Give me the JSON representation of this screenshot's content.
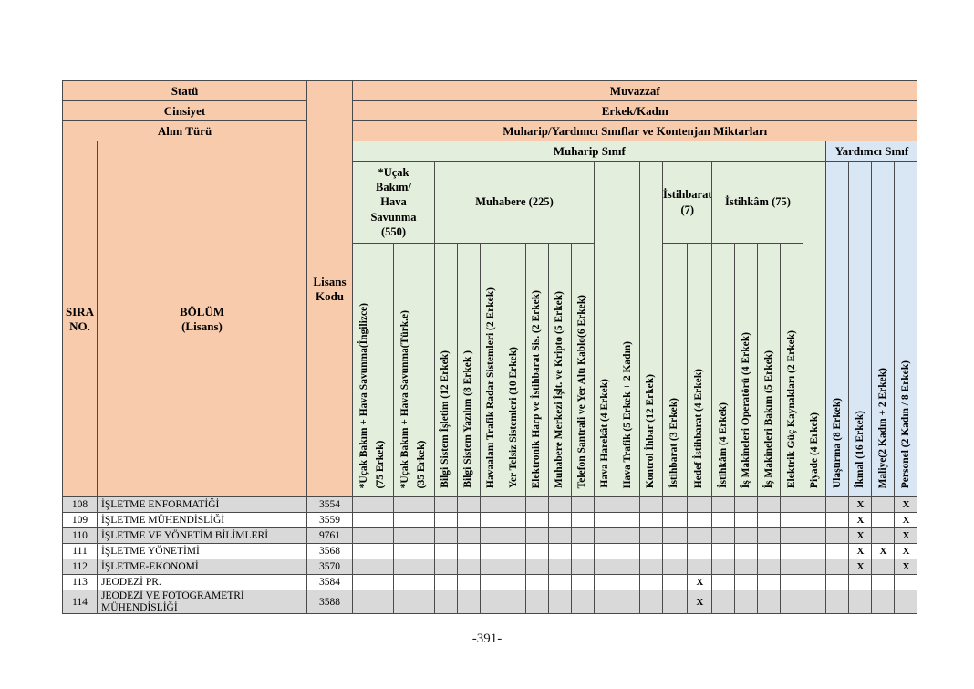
{
  "page": {
    "footer": "-391-"
  },
  "colors": {
    "header_orange": "#f8cbad",
    "muharip_green": "#e4eedc",
    "yardimci_blue": "#d9e7f5",
    "row_shade_grey": "#d9d9d9",
    "border": "#4a4a4a"
  },
  "table": {
    "left": {
      "statu": "Statü",
      "cinsiyet": "Cinsiyet",
      "alim_turu": "Alım Türü",
      "sira_no": "SIRA\nNO.",
      "bolum": "BÖLÜM\n(Lisans)",
      "lisans_kodu": "Lisans\nKodu"
    },
    "right": {
      "muvazzaf": "Muvazzaf",
      "erkek_kadin": "Erkek/Kadın",
      "kontenjan": "Muharip/Yardımcı Sınıflar ve Kontenjan Miktarları",
      "muharip": "Muharip Sınıf",
      "yardimci": "Yardımcı Sınıf"
    },
    "groups": [
      {
        "label": "*Uçak\nBakım/\nHava\nSavunma\n(550)",
        "span": 2
      },
      {
        "label": "Muhabere (225)",
        "span": 7
      },
      {
        "label": "İstihbarat\n(7)",
        "span": 2
      },
      {
        "label": "İstihkâm (75)",
        "span": 4
      }
    ],
    "columns": [
      {
        "label": "*Uçak Bakım + Hava Savunma(İngilizce)\n(75 Erkek)",
        "group": 0,
        "wide": true
      },
      {
        "label": "*Uçak Bakım + Hava Savunma(Türk.e)\n(35 Erkek)",
        "group": 0,
        "wide": true
      },
      {
        "label": "Bilgi Sistem İşletim (12 Erkek)",
        "group": 1
      },
      {
        "label": "Bilgi Sistem Yazılım (8 Erkek )",
        "group": 1
      },
      {
        "label": "Havaalanı Trafik Radar Sistemleri (2 Erkek)",
        "group": 1
      },
      {
        "label": "Yer Telsiz Sistemleri (10 Erkek)",
        "group": 1
      },
      {
        "label": "Elektronik Harp ve İstihbarat Sis. (2 Erkek)",
        "group": 1
      },
      {
        "label": "Muhabere Merkezi İşlt. ve Kripto (5 Erkek)",
        "group": 1
      },
      {
        "label": "Telefon Santrali ve Yer Altı Kablo(6 Erkek)",
        "group": 1
      },
      {
        "label": "Hava Harekât (4 Erkek)",
        "tall": true
      },
      {
        "label": "Hava Trafik (5 Erkek + 2 Kadın)",
        "tall": true
      },
      {
        "label": "Kontrol İhbar (12 Erkek)",
        "tall": true
      },
      {
        "label": "İstihbarat (3 Erkek)",
        "group": 2
      },
      {
        "label": "Hedef İstihbarat (4 Erkek)",
        "group": 2
      },
      {
        "label": "İstihkâm (4 Erkek)",
        "group": 3
      },
      {
        "label": "İş Makineleri Operatörü (4 Erkek)",
        "group": 3
      },
      {
        "label": "İş Makineleri Bakım (5 Erkek)",
        "group": 3
      },
      {
        "label": "Elektrik Güç Kaynakları (2 Erkek)",
        "group": 3
      },
      {
        "label": "Piyade (4 Erkek)",
        "tall": true
      },
      {
        "label": "Ulaştırma (8 Erkek)",
        "tall": true,
        "section": "yardimci"
      },
      {
        "label": "İkmal (16 Erkek)",
        "tall": true,
        "section": "yardimci"
      },
      {
        "label": "Maliye(2 Kadın + 2 Erkek)",
        "tall": true,
        "section": "yardimci"
      },
      {
        "label": "Personel (2 Kadın / 8 Erkek)",
        "tall": true,
        "section": "yardimci"
      }
    ],
    "mark_symbol": "X",
    "rows": [
      {
        "sira": "108",
        "bolum": "İŞLETME ENFORMATİĞİ",
        "kod": "3554",
        "x": [
          20,
          22
        ]
      },
      {
        "sira": "109",
        "bolum": "İŞLETME MÜHENDİSLİĞİ",
        "kod": "3559",
        "x": [
          20,
          22
        ]
      },
      {
        "sira": "110",
        "bolum": "İŞLETME VE YÖNETİM BİLİMLERİ",
        "kod": "9761",
        "x": [
          20,
          22
        ]
      },
      {
        "sira": "111",
        "bolum": "İŞLETME YÖNETİMİ",
        "kod": "3568",
        "x": [
          20,
          21,
          22
        ]
      },
      {
        "sira": "112",
        "bolum": "İŞLETME-EKONOMİ",
        "kod": "3570",
        "x": [
          20,
          22
        ]
      },
      {
        "sira": "113",
        "bolum": "JEODEZİ PR.",
        "kod": "3584",
        "x": [
          13
        ]
      },
      {
        "sira": "114",
        "bolum": "JEODEZİ VE FOTOGRAMETRİ MÜHENDİSLİĞİ",
        "kod": "3588",
        "x": [
          13
        ]
      }
    ]
  }
}
